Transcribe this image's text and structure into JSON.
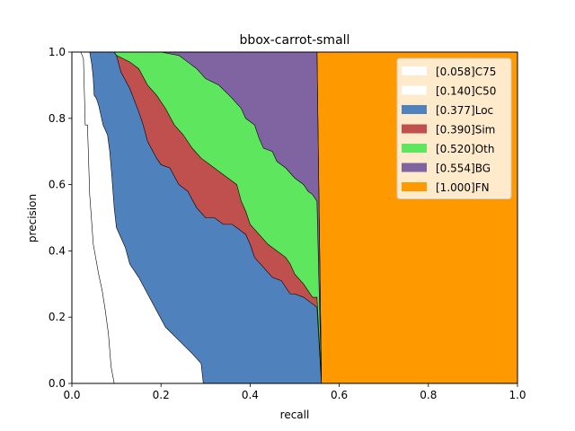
{
  "chart_data": {
    "type": "area",
    "title": "bbox-carrot-small",
    "xlabel": "recall",
    "ylabel": "precision",
    "xlim": [
      0,
      1
    ],
    "ylim": [
      0,
      1
    ],
    "x_ticks": [
      "0.0",
      "0.2",
      "0.4",
      "0.6",
      "0.8",
      "1.0"
    ],
    "y_ticks": [
      "0.0",
      "0.2",
      "0.4",
      "0.6",
      "0.8",
      "1.0"
    ],
    "grid": false,
    "legend_position": "top-right",
    "series": [
      {
        "name": "[0.058]C75",
        "color": "#ffffff",
        "points": [
          [
            0.02,
            1.0
          ],
          [
            0.026,
            0.98
          ],
          [
            0.03,
            0.78
          ],
          [
            0.035,
            0.78
          ],
          [
            0.04,
            0.57
          ],
          [
            0.048,
            0.42
          ],
          [
            0.06,
            0.33
          ],
          [
            0.068,
            0.28
          ],
          [
            0.075,
            0.22
          ],
          [
            0.082,
            0.15
          ],
          [
            0.088,
            0.05
          ],
          [
            0.095,
            0.0
          ]
        ]
      },
      {
        "name": "[0.140]C50",
        "color": "#ffffff",
        "points": [
          [
            0.04,
            1.0
          ],
          [
            0.045,
            0.96
          ],
          [
            0.048,
            0.92
          ],
          [
            0.05,
            0.87
          ],
          [
            0.055,
            0.86
          ],
          [
            0.06,
            0.84
          ],
          [
            0.07,
            0.78
          ],
          [
            0.08,
            0.75
          ],
          [
            0.085,
            0.7
          ],
          [
            0.09,
            0.62
          ],
          [
            0.095,
            0.53
          ],
          [
            0.1,
            0.47
          ],
          [
            0.11,
            0.44
          ],
          [
            0.12,
            0.41
          ],
          [
            0.13,
            0.36
          ],
          [
            0.15,
            0.32
          ],
          [
            0.17,
            0.27
          ],
          [
            0.19,
            0.22
          ],
          [
            0.21,
            0.17
          ],
          [
            0.24,
            0.13
          ],
          [
            0.27,
            0.09
          ],
          [
            0.29,
            0.06
          ],
          [
            0.295,
            0.0
          ]
        ]
      },
      {
        "name": "[0.377]Loc",
        "color": "#4f81bd",
        "points": [
          [
            0.095,
            1.0
          ],
          [
            0.1,
            0.99
          ],
          [
            0.11,
            0.94
          ],
          [
            0.13,
            0.89
          ],
          [
            0.15,
            0.82
          ],
          [
            0.16,
            0.78
          ],
          [
            0.17,
            0.73
          ],
          [
            0.19,
            0.68
          ],
          [
            0.2,
            0.66
          ],
          [
            0.22,
            0.65
          ],
          [
            0.24,
            0.6
          ],
          [
            0.26,
            0.58
          ],
          [
            0.28,
            0.53
          ],
          [
            0.3,
            0.5
          ],
          [
            0.32,
            0.5
          ],
          [
            0.34,
            0.48
          ],
          [
            0.36,
            0.48
          ],
          [
            0.38,
            0.46
          ],
          [
            0.39,
            0.45
          ],
          [
            0.4,
            0.42
          ],
          [
            0.41,
            0.38
          ],
          [
            0.43,
            0.35
          ],
          [
            0.45,
            0.32
          ],
          [
            0.47,
            0.31
          ],
          [
            0.48,
            0.29
          ],
          [
            0.49,
            0.27
          ],
          [
            0.5,
            0.27
          ],
          [
            0.52,
            0.26
          ],
          [
            0.54,
            0.24
          ],
          [
            0.55,
            0.23
          ],
          [
            0.56,
            0.0
          ]
        ]
      },
      {
        "name": "[0.390]Sim",
        "color": "#c0504d",
        "points": [
          [
            0.095,
            1.0
          ],
          [
            0.1,
            0.99
          ],
          [
            0.13,
            0.97
          ],
          [
            0.15,
            0.95
          ],
          [
            0.17,
            0.9
          ],
          [
            0.19,
            0.87
          ],
          [
            0.21,
            0.83
          ],
          [
            0.23,
            0.78
          ],
          [
            0.25,
            0.75
          ],
          [
            0.27,
            0.71
          ],
          [
            0.29,
            0.68
          ],
          [
            0.31,
            0.66
          ],
          [
            0.33,
            0.64
          ],
          [
            0.35,
            0.62
          ],
          [
            0.37,
            0.6
          ],
          [
            0.38,
            0.55
          ],
          [
            0.39,
            0.52
          ],
          [
            0.4,
            0.48
          ],
          [
            0.42,
            0.45
          ],
          [
            0.44,
            0.42
          ],
          [
            0.46,
            0.4
          ],
          [
            0.48,
            0.38
          ],
          [
            0.49,
            0.36
          ],
          [
            0.5,
            0.33
          ],
          [
            0.52,
            0.3
          ],
          [
            0.54,
            0.26
          ],
          [
            0.55,
            0.26
          ],
          [
            0.56,
            0.0
          ]
        ]
      },
      {
        "name": "[0.520]Oth",
        "color": "#5ee65e",
        "points": [
          [
            0.095,
            1.0
          ],
          [
            0.1,
            1.0
          ],
          [
            0.15,
            1.0
          ],
          [
            0.2,
            1.0
          ],
          [
            0.24,
            0.99
          ],
          [
            0.26,
            0.97
          ],
          [
            0.28,
            0.95
          ],
          [
            0.3,
            0.92
          ],
          [
            0.33,
            0.9
          ],
          [
            0.36,
            0.86
          ],
          [
            0.38,
            0.83
          ],
          [
            0.39,
            0.8
          ],
          [
            0.4,
            0.79
          ],
          [
            0.41,
            0.78
          ],
          [
            0.42,
            0.74
          ],
          [
            0.43,
            0.71
          ],
          [
            0.45,
            0.7
          ],
          [
            0.46,
            0.67
          ],
          [
            0.48,
            0.65
          ],
          [
            0.5,
            0.62
          ],
          [
            0.52,
            0.6
          ],
          [
            0.53,
            0.58
          ],
          [
            0.54,
            0.57
          ],
          [
            0.55,
            0.55
          ],
          [
            0.56,
            0.0
          ]
        ]
      },
      {
        "name": "[0.554]BG",
        "color": "#8064a2",
        "points": [
          [
            0.095,
            1.0
          ],
          [
            0.2,
            1.0
          ],
          [
            0.3,
            1.0
          ],
          [
            0.4,
            1.0
          ],
          [
            0.5,
            1.0
          ],
          [
            0.55,
            1.0
          ],
          [
            0.56,
            0.0
          ]
        ]
      },
      {
        "name": "[1.000]FN",
        "color": "#ff9900",
        "points": [
          [
            0.55,
            1.0
          ],
          [
            1.0,
            1.0
          ],
          [
            1.0,
            0.0
          ],
          [
            0.56,
            0.0
          ]
        ]
      }
    ]
  }
}
